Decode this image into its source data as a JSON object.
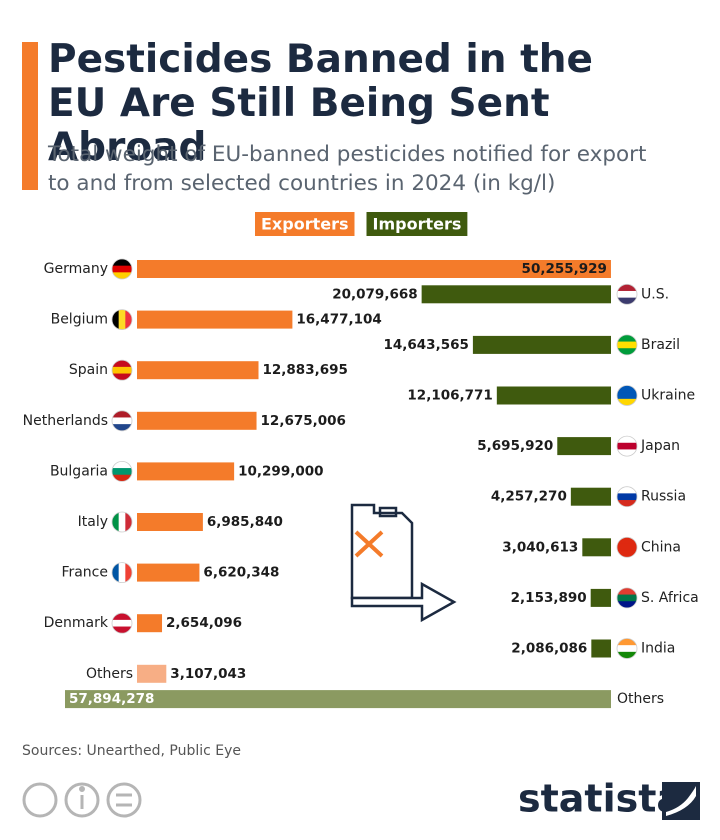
{
  "chart_data": {
    "type": "bar",
    "title": "Pesticides Banned in the EU Are Still Being Sent Abroad",
    "subtitle": "Total weight of EU-banned pesticides notified for export to and from selected countries in 2024 (in kg/l)",
    "series": [
      {
        "name": "Exporters",
        "color": "#f47b2a",
        "categories": [
          "Germany",
          "Belgium",
          "Spain",
          "Netherlands",
          "Bulgaria",
          "Italy",
          "France",
          "Denmark",
          "Others"
        ],
        "values": [
          50255929,
          16477104,
          12883695,
          12675006,
          10299000,
          6985840,
          6620348,
          2654096,
          3107043
        ],
        "value_labels": [
          "50,255,929",
          "16,477,104",
          "12,883,695",
          "12,675,006",
          "10,299,000",
          "6,985,840",
          "6,620,348",
          "2,654,096",
          "3,107,043"
        ],
        "colors": [
          "#f47b2a",
          "#f47b2a",
          "#f47b2a",
          "#f47b2a",
          "#f47b2a",
          "#f47b2a",
          "#f47b2a",
          "#f47b2a",
          "#f7ae85"
        ]
      },
      {
        "name": "Importers",
        "color": "#3f5a0e",
        "categories": [
          "U.S.",
          "Brazil",
          "Ukraine",
          "Japan",
          "Russia",
          "China",
          "S. Africa",
          "India",
          "Others"
        ],
        "values": [
          20079668,
          14643565,
          12106771,
          5695920,
          4257270,
          3040613,
          2153890,
          2086086,
          57894278
        ],
        "value_labels": [
          "20,079,668",
          "14,643,565",
          "12,106,771",
          "5,695,920",
          "4,257,270",
          "3,040,613",
          "2,153,890",
          "2,086,086",
          "57,894,278"
        ],
        "colors": [
          "#3f5a0e",
          "#3f5a0e",
          "#3f5a0e",
          "#3f5a0e",
          "#3f5a0e",
          "#3f5a0e",
          "#3f5a0e",
          "#3f5a0e",
          "#8b9a61"
        ]
      }
    ],
    "source": "Sources: Unearthed, Public Eye",
    "brand": "statista"
  }
}
